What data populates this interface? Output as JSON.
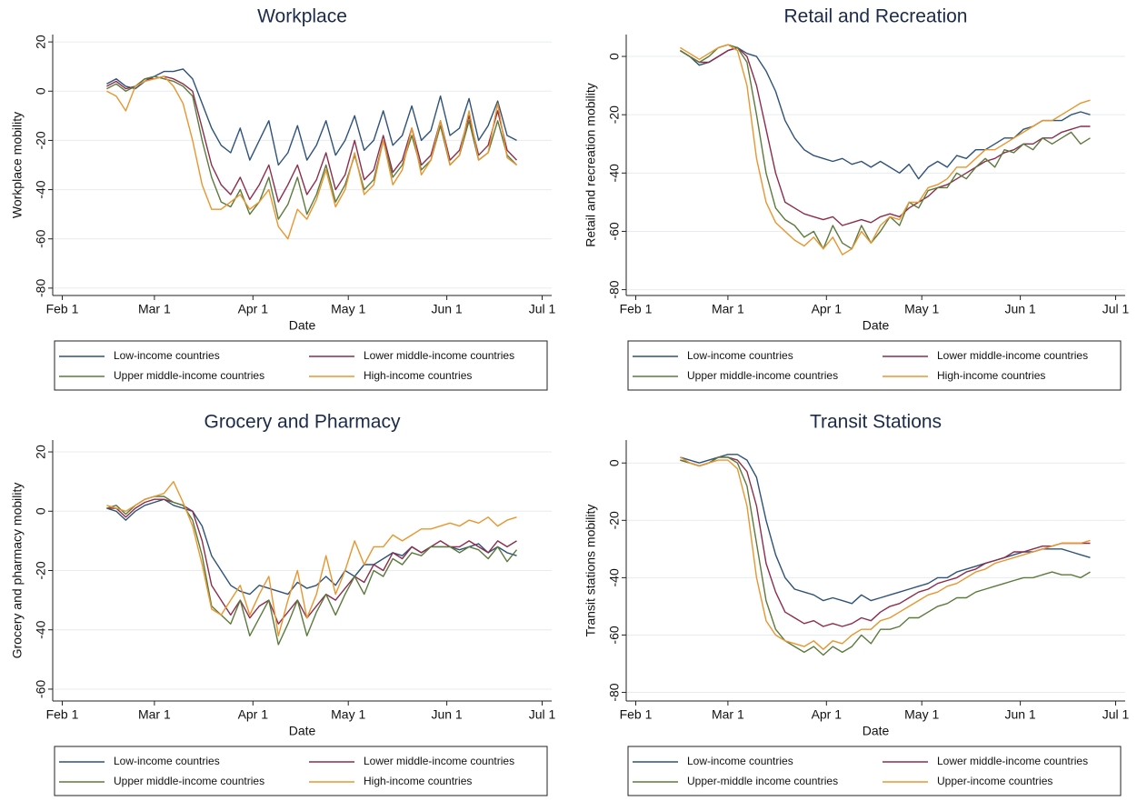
{
  "chart_data": [
    {
      "type": "line",
      "title": "Workplace",
      "x_label": "Date",
      "y_label": "Workplace mobility",
      "grid": true,
      "x": [
        46,
        49,
        52,
        55,
        58,
        61,
        64,
        67,
        70,
        73,
        76,
        79,
        82,
        85,
        88,
        91,
        94,
        97,
        100,
        103,
        106,
        109,
        112,
        115,
        118,
        121,
        124,
        127,
        130,
        133,
        136,
        139,
        142,
        145,
        148,
        151,
        154,
        157,
        160,
        163,
        166,
        169,
        172,
        175
      ],
      "xlim": [
        29,
        186
      ],
      "xticks": [
        {
          "value": 32,
          "label": "Feb 1"
        },
        {
          "value": 61,
          "label": "Mar 1"
        },
        {
          "value": 92,
          "label": "Apr 1"
        },
        {
          "value": 122,
          "label": "May 1"
        },
        {
          "value": 153,
          "label": "Jun 1"
        },
        {
          "value": 183,
          "label": "Jul 1"
        }
      ],
      "ylim": [
        -83,
        23
      ],
      "yticks": [
        20,
        0,
        -20,
        -40,
        -60,
        -80
      ],
      "series": [
        {
          "name": "Low-income countries",
          "color": "#2e5279",
          "values": [
            3,
            5,
            2,
            1,
            4,
            6,
            8,
            8,
            9,
            5,
            -5,
            -15,
            -22,
            -25,
            -15,
            -28,
            -20,
            -12,
            -30,
            -25,
            -14,
            -28,
            -22,
            -12,
            -26,
            -20,
            -10,
            -24,
            -20,
            -8,
            -22,
            -18,
            -6,
            -20,
            -16,
            -2,
            -18,
            -15,
            -3,
            -20,
            -14,
            -4,
            -18,
            -20
          ]
        },
        {
          "name": "Lower middle-income countries",
          "color": "#8c2d4e",
          "values": [
            2,
            4,
            1,
            2,
            5,
            5,
            6,
            5,
            3,
            0,
            -15,
            -30,
            -38,
            -42,
            -35,
            -44,
            -38,
            -30,
            -45,
            -38,
            -30,
            -42,
            -36,
            -25,
            -40,
            -34,
            -20,
            -36,
            -32,
            -18,
            -33,
            -28,
            -15,
            -30,
            -26,
            -12,
            -28,
            -24,
            -10,
            -26,
            -22,
            -8,
            -24,
            -28
          ]
        },
        {
          "name": "Upper middle-income countries",
          "color": "#5b7a3c",
          "values": [
            1,
            3,
            0,
            2,
            5,
            6,
            5,
            4,
            2,
            -2,
            -20,
            -35,
            -45,
            -47,
            -40,
            -50,
            -45,
            -35,
            -52,
            -46,
            -35,
            -50,
            -42,
            -30,
            -45,
            -38,
            -26,
            -40,
            -36,
            -20,
            -35,
            -30,
            -18,
            -32,
            -28,
            -14,
            -30,
            -26,
            -12,
            -28,
            -25,
            -12,
            -26,
            -30
          ]
        },
        {
          "name": "High-income countries",
          "color": "#e8962e",
          "values": [
            0,
            -2,
            -8,
            2,
            4,
            5,
            6,
            2,
            -5,
            -20,
            -38,
            -48,
            -48,
            -45,
            -42,
            -48,
            -45,
            -40,
            -55,
            -60,
            -48,
            -52,
            -44,
            -32,
            -47,
            -40,
            -25,
            -42,
            -38,
            -20,
            -38,
            -32,
            -15,
            -34,
            -28,
            -12,
            -30,
            -26,
            -8,
            -28,
            -25,
            -5,
            -27,
            -30
          ]
        }
      ]
    },
    {
      "type": "line",
      "title": "Retail and Recreation",
      "x_label": "Date",
      "y_label": "Retail and recreation mobility",
      "grid": true,
      "x": [
        46,
        49,
        52,
        55,
        58,
        61,
        64,
        67,
        70,
        73,
        76,
        79,
        82,
        85,
        88,
        91,
        94,
        97,
        100,
        103,
        106,
        109,
        112,
        115,
        118,
        121,
        124,
        127,
        130,
        133,
        136,
        139,
        142,
        145,
        148,
        151,
        154,
        157,
        160,
        163,
        166,
        169,
        172,
        175
      ],
      "xlim": [
        29,
        186
      ],
      "xticks": [
        {
          "value": 32,
          "label": "Feb 1"
        },
        {
          "value": 61,
          "label": "Mar 1"
        },
        {
          "value": 92,
          "label": "Apr 1"
        },
        {
          "value": 122,
          "label": "May 1"
        },
        {
          "value": 153,
          "label": "Jun 1"
        },
        {
          "value": 183,
          "label": "Jul 1"
        }
      ],
      "ylim": [
        -82,
        7.5
      ],
      "yticks": [
        0,
        -20,
        -40,
        -60,
        -80
      ],
      "series": [
        {
          "name": "Low-income countries",
          "color": "#2e5279",
          "values": [
            2,
            0,
            -3,
            -2,
            0,
            2,
            3,
            1,
            0,
            -5,
            -12,
            -22,
            -28,
            -32,
            -34,
            -35,
            -36,
            -35,
            -37,
            -36,
            -38,
            -36,
            -38,
            -40,
            -37,
            -42,
            -38,
            -36,
            -38,
            -34,
            -35,
            -32,
            -32,
            -30,
            -28,
            -28,
            -25,
            -24,
            -22,
            -22,
            -22,
            -20,
            -19,
            -20
          ]
        },
        {
          "name": "Lower middle-income countries",
          "color": "#8c2d4e",
          "values": [
            2,
            0,
            -2,
            -2,
            0,
            2,
            3,
            0,
            -10,
            -25,
            -40,
            -50,
            -52,
            -54,
            -55,
            -56,
            -55,
            -58,
            -57,
            -56,
            -57,
            -55,
            -54,
            -55,
            -52,
            -50,
            -48,
            -45,
            -44,
            -42,
            -40,
            -38,
            -36,
            -35,
            -33,
            -32,
            -30,
            -30,
            -28,
            -28,
            -26,
            -25,
            -24,
            -24
          ]
        },
        {
          "name": "Upper middle-income countries",
          "color": "#5b7a3c",
          "values": [
            2,
            0,
            -2,
            0,
            3,
            4,
            3,
            -2,
            -20,
            -40,
            -52,
            -56,
            -58,
            -62,
            -60,
            -66,
            -58,
            -64,
            -66,
            -58,
            -64,
            -60,
            -55,
            -58,
            -50,
            -52,
            -46,
            -45,
            -45,
            -40,
            -42,
            -38,
            -35,
            -38,
            -32,
            -33,
            -30,
            -32,
            -28,
            -30,
            -28,
            -26,
            -30,
            -28
          ]
        },
        {
          "name": "High-income countries",
          "color": "#e8962e",
          "values": [
            3,
            1,
            -1,
            1,
            3,
            4,
            2,
            -10,
            -35,
            -50,
            -57,
            -60,
            -63,
            -65,
            -62,
            -66,
            -62,
            -68,
            -66,
            -60,
            -64,
            -58,
            -55,
            -56,
            -50,
            -50,
            -45,
            -44,
            -42,
            -38,
            -38,
            -35,
            -32,
            -32,
            -30,
            -28,
            -26,
            -24,
            -22,
            -22,
            -20,
            -18,
            -16,
            -15
          ]
        }
      ]
    },
    {
      "type": "line",
      "title": "Grocery and Pharmacy",
      "x_label": "Date",
      "y_label": "Grocery and pharmacy mobility",
      "grid": true,
      "x": [
        46,
        49,
        52,
        55,
        58,
        61,
        64,
        67,
        70,
        73,
        76,
        79,
        82,
        85,
        88,
        91,
        94,
        97,
        100,
        103,
        106,
        109,
        112,
        115,
        118,
        121,
        124,
        127,
        130,
        133,
        136,
        139,
        142,
        145,
        148,
        151,
        154,
        157,
        160,
        163,
        166,
        169,
        172,
        175
      ],
      "xlim": [
        29,
        186
      ],
      "xticks": [
        {
          "value": 32,
          "label": "Feb 1"
        },
        {
          "value": 61,
          "label": "Mar 1"
        },
        {
          "value": 92,
          "label": "Apr 1"
        },
        {
          "value": 122,
          "label": "May 1"
        },
        {
          "value": 153,
          "label": "Jun 1"
        },
        {
          "value": 183,
          "label": "Jul 1"
        }
      ],
      "ylim": [
        -64,
        24
      ],
      "yticks": [
        20,
        0,
        -20,
        -40,
        -60
      ],
      "series": [
        {
          "name": "Low-income countries",
          "color": "#2e5279",
          "values": [
            1,
            0,
            -3,
            0,
            2,
            3,
            4,
            2,
            1,
            0,
            -5,
            -15,
            -20,
            -25,
            -27,
            -28,
            -25,
            -26,
            -27,
            -28,
            -24,
            -26,
            -25,
            -22,
            -25,
            -20,
            -22,
            -18,
            -18,
            -16,
            -14,
            -15,
            -12,
            -14,
            -12,
            -12,
            -12,
            -13,
            -12,
            -11,
            -14,
            -12,
            -14,
            -15
          ]
        },
        {
          "name": "Lower middle-income countries",
          "color": "#8c2d4e",
          "values": [
            1,
            1,
            -2,
            1,
            3,
            4,
            4,
            3,
            2,
            0,
            -10,
            -25,
            -30,
            -35,
            -30,
            -36,
            -32,
            -30,
            -38,
            -34,
            -30,
            -36,
            -32,
            -28,
            -30,
            -26,
            -22,
            -24,
            -18,
            -20,
            -14,
            -16,
            -12,
            -14,
            -12,
            -10,
            -12,
            -12,
            -10,
            -12,
            -14,
            -10,
            -12,
            -10
          ]
        },
        {
          "name": "Upper middle-income countries",
          "color": "#5b7a3c",
          "values": [
            1,
            2,
            -1,
            2,
            4,
            5,
            5,
            3,
            2,
            -3,
            -15,
            -32,
            -35,
            -38,
            -30,
            -42,
            -36,
            -30,
            -45,
            -38,
            -30,
            -42,
            -34,
            -28,
            -35,
            -28,
            -22,
            -28,
            -20,
            -22,
            -16,
            -18,
            -14,
            -15,
            -12,
            -12,
            -12,
            -14,
            -12,
            -13,
            -16,
            -12,
            -17,
            -13
          ]
        },
        {
          "name": "High-income countries",
          "color": "#e8962e",
          "values": [
            2,
            1,
            0,
            2,
            4,
            5,
            6,
            10,
            3,
            -5,
            -18,
            -33,
            -35,
            -30,
            -25,
            -35,
            -28,
            -22,
            -42,
            -30,
            -20,
            -36,
            -28,
            -15,
            -28,
            -20,
            -10,
            -18,
            -12,
            -12,
            -8,
            -10,
            -8,
            -6,
            -6,
            -5,
            -4,
            -5,
            -3,
            -4,
            -2,
            -5,
            -3,
            -2
          ]
        }
      ]
    },
    {
      "type": "line",
      "title": "Transit Stations",
      "x_label": "Date",
      "y_label": "Transit stations mobility",
      "grid": true,
      "x": [
        46,
        49,
        52,
        55,
        58,
        61,
        64,
        67,
        70,
        73,
        76,
        79,
        82,
        85,
        88,
        91,
        94,
        97,
        100,
        103,
        106,
        109,
        112,
        115,
        118,
        121,
        124,
        127,
        130,
        133,
        136,
        139,
        142,
        145,
        148,
        151,
        154,
        157,
        160,
        163,
        166,
        169,
        172,
        175
      ],
      "xlim": [
        29,
        186
      ],
      "xticks": [
        {
          "value": 32,
          "label": "Feb 1"
        },
        {
          "value": 61,
          "label": "Mar 1"
        },
        {
          "value": 92,
          "label": "Apr 1"
        },
        {
          "value": 122,
          "label": "May 1"
        },
        {
          "value": 153,
          "label": "Jun 1"
        },
        {
          "value": 183,
          "label": "Jul 1"
        }
      ],
      "ylim": [
        -83,
        8
      ],
      "yticks": [
        0,
        -20,
        -40,
        -60,
        -80
      ],
      "series": [
        {
          "name": "Low-income countries",
          "color": "#2e5279",
          "values": [
            2,
            1,
            0,
            1,
            2,
            3,
            3,
            1,
            -5,
            -20,
            -32,
            -40,
            -44,
            -45,
            -46,
            -48,
            -47,
            -48,
            -49,
            -46,
            -48,
            -47,
            -46,
            -45,
            -44,
            -43,
            -42,
            -40,
            -40,
            -38,
            -37,
            -36,
            -35,
            -34,
            -33,
            -32,
            -31,
            -31,
            -30,
            -30,
            -30,
            -31,
            -32,
            -33
          ]
        },
        {
          "name": "Lower middle-income countries",
          "color": "#8c2d4e",
          "values": [
            1,
            0,
            -1,
            0,
            2,
            2,
            1,
            -3,
            -15,
            -35,
            -45,
            -52,
            -54,
            -56,
            -55,
            -57,
            -56,
            -57,
            -56,
            -54,
            -55,
            -52,
            -50,
            -49,
            -47,
            -45,
            -44,
            -42,
            -41,
            -40,
            -38,
            -37,
            -35,
            -34,
            -33,
            -31,
            -31,
            -30,
            -29,
            -29,
            -28,
            -28,
            -28,
            -28
          ]
        },
        {
          "name": "Upper-middle income countries",
          "color": "#5b7a3c",
          "values": [
            1,
            0,
            -1,
            0,
            2,
            2,
            0,
            -8,
            -28,
            -48,
            -58,
            -62,
            -64,
            -66,
            -64,
            -67,
            -64,
            -66,
            -64,
            -60,
            -63,
            -58,
            -58,
            -57,
            -54,
            -54,
            -52,
            -50,
            -49,
            -47,
            -47,
            -45,
            -44,
            -43,
            -42,
            -41,
            -40,
            -40,
            -39,
            -38,
            -39,
            -39,
            -40,
            -38
          ]
        },
        {
          "name": "Upper-income countries",
          "color": "#e8962e",
          "values": [
            2,
            0,
            -1,
            0,
            1,
            1,
            -2,
            -15,
            -40,
            -55,
            -60,
            -62,
            -63,
            -64,
            -62,
            -65,
            -62,
            -63,
            -60,
            -58,
            -58,
            -55,
            -54,
            -52,
            -50,
            -48,
            -46,
            -45,
            -43,
            -42,
            -40,
            -38,
            -37,
            -35,
            -34,
            -33,
            -32,
            -31,
            -30,
            -29,
            -28,
            -28,
            -28,
            -27
          ]
        }
      ]
    }
  ]
}
